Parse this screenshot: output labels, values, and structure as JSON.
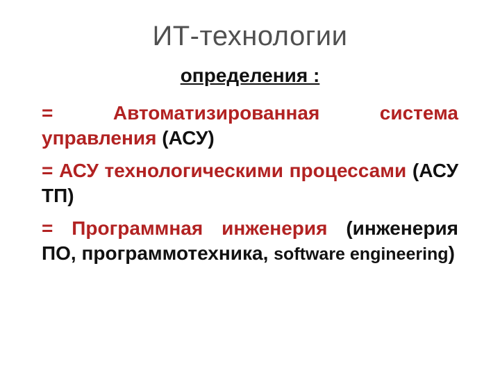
{
  "colors": {
    "title": "#505050",
    "text_black": "#111111",
    "text_red": "#b22222",
    "background": "#ffffff"
  },
  "typography": {
    "title_fontsize_pt": 30,
    "subtitle_fontsize_pt": 21,
    "body_fontsize_pt": 21,
    "font_family": "Arial",
    "title_weight": "400",
    "body_weight": "700"
  },
  "title": "ИТ-технологии",
  "subtitle": "определения :",
  "items": [
    {
      "eq": "= ",
      "red": "Автоматизированная система управления",
      "black": " (АСУ)"
    },
    {
      "eq": "= ",
      "red": "АСУ технологическими процессами",
      "black": " (АСУ ТП)"
    },
    {
      "eq": "= ",
      "red": "Программная инженерия",
      "black_pre": " (инженерия ПО, программотехника, ",
      "sw": "software engineering",
      "black_post": ")"
    }
  ]
}
